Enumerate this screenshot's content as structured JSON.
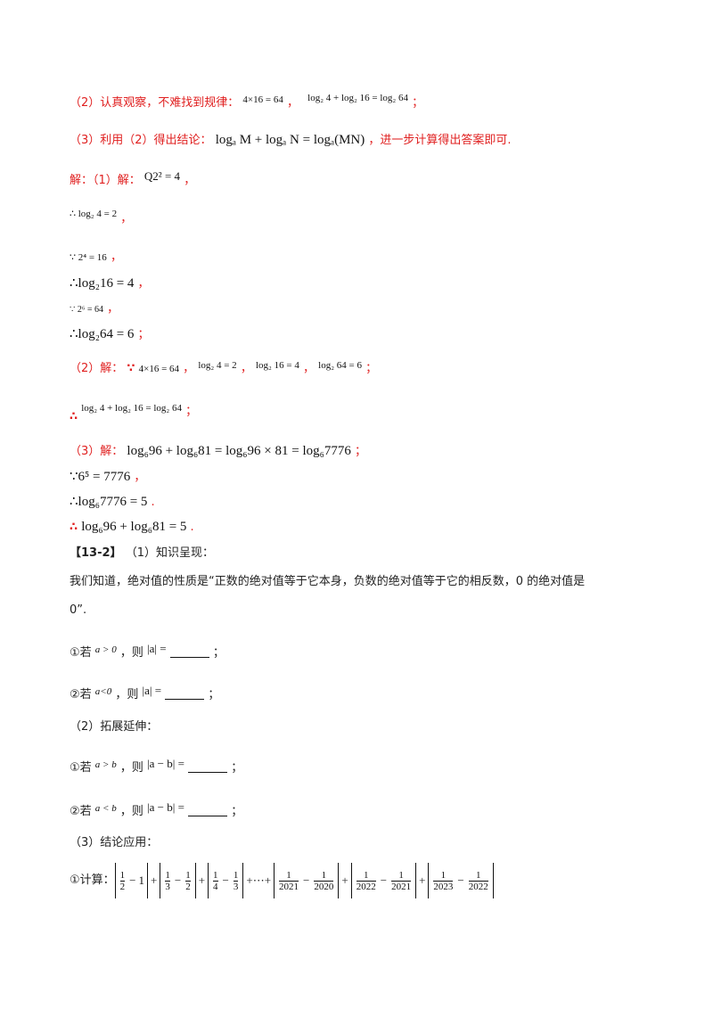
{
  "section_2_hint": {
    "label": "（2）认真观察，不难找到规律：",
    "formula1": "4×16 = 64",
    "sep": "，",
    "formula2": "log₂ 4 + log₂ 16 = log₂ 64",
    "end": "；"
  },
  "section_3_hint": {
    "label": "（3）利用（2）得出结论：",
    "formula": "logₐ M + logₐ N = logₐ(MN)",
    "tail": "，进一步计算得出答案即可."
  },
  "solution": {
    "s1_label": "解：（1）解：",
    "s1_formula": "Q2² = 4",
    "s1_end": "，",
    "l2": "∴ log₂ 4 = 2",
    "l2_end": "，",
    "l3": "∵ 2⁴ = 16",
    "l3_end": "，",
    "l4": "∴log₂16 = 4",
    "l4_end": "，",
    "l5": "∵ 2⁶ = 64",
    "l5_end": "，",
    "l6": "∴log₂64 = 6",
    "l6_end": "；",
    "s2_label": "（2）解：",
    "s2_because": "∵",
    "s2_f1": "4×16 = 64",
    "s2_f2": "log₂ 4 = 2",
    "s2_f3": "log₂ 16 = 4",
    "s2_f4": "log₂ 64 = 6",
    "s2_sep": "，",
    "s2_end": "；",
    "s2b_therefore": "∴",
    "s2b_formula": "log₂ 4 + log₂ 16 = log₂ 64",
    "s2b_end": "；",
    "s3_label": "（3）解：",
    "s3_formula": "log₆96 + log₆81 = log₆96 × 81 = log₆7776",
    "s3_end": "；",
    "s3_l2": "∵6⁵ = 7776",
    "s3_l2_end": "，",
    "s3_l3": "∴log₆7776 = 5",
    "s3_l3_end": ".",
    "s3_l4_therefore": "∴",
    "s3_l4": "log₆96 + log₆81 = 5",
    "s3_l4_end": "."
  },
  "problem_13_2": {
    "tag": "【13-2】",
    "part1_label": "（1）知识呈现：",
    "intro_line1": "我们知道，绝对值的性质是“正数的绝对值等于它本身，负数的绝对值等于它的相反数，0 的绝对值是",
    "intro_line2": "0”.",
    "q1_prefix": "①若",
    "q1_cond": "a > 0",
    "q1_then": "，则",
    "q1_expr": "|a| =",
    "q1_end": "；",
    "q2_prefix": "②若",
    "q2_cond": "a<0",
    "q2_then": "，则",
    "q2_expr": "|a| =",
    "q2_end": "；",
    "part2_label": "（2）拓展延伸：",
    "q3_prefix": "①若",
    "q3_cond": "a > b",
    "q3_then": "，则",
    "q3_expr": "|a − b| =",
    "q3_end": "；",
    "q4_prefix": "②若",
    "q4_cond": "a < b",
    "q4_then": "，则",
    "q4_expr": "|a − b| =",
    "q4_end": "；",
    "part3_label": "（3）结论应用：",
    "calc_label": "①计算："
  },
  "calc_expression": {
    "terms": [
      {
        "a_num": "1",
        "a_den": "2",
        "minus": "−",
        "b": "1"
      },
      {
        "a_num": "1",
        "a_den": "3",
        "minus": "−",
        "b_num": "1",
        "b_den": "2"
      },
      {
        "a_num": "1",
        "a_den": "4",
        "minus": "−",
        "b_num": "1",
        "b_den": "3"
      },
      {
        "a_num": "1",
        "a_den": "2021",
        "minus": "−",
        "b_num": "1",
        "b_den": "2020"
      },
      {
        "a_num": "1",
        "a_den": "2022",
        "minus": "−",
        "b_num": "1",
        "b_den": "2021"
      },
      {
        "a_num": "1",
        "a_den": "2023",
        "minus": "−",
        "b_num": "1",
        "b_den": "2022"
      }
    ],
    "plus": "+",
    "ellipsis": "+⋯+"
  }
}
